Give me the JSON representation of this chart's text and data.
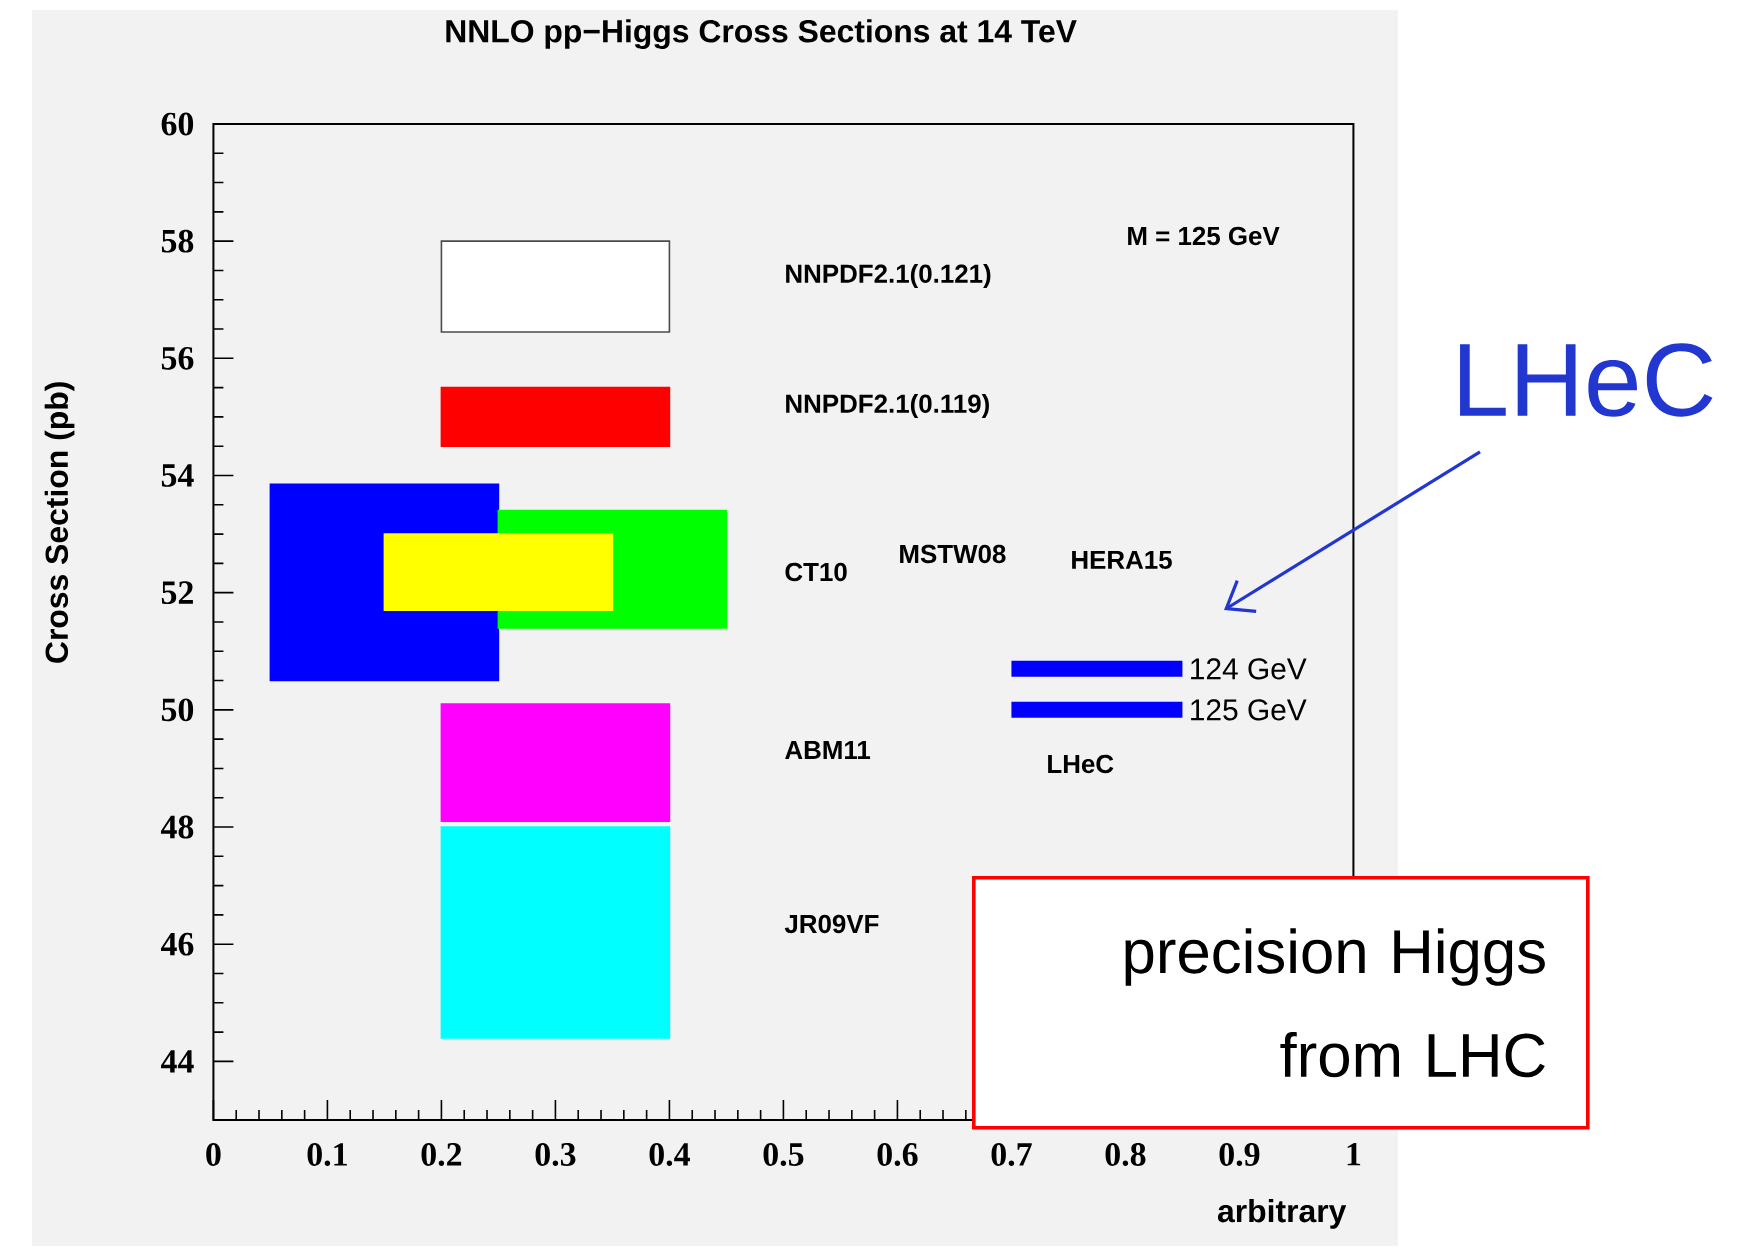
{
  "chart_data": {
    "type": "bar",
    "title": "NNLO pp−Higgs Cross Sections at 14 TeV",
    "xlabel": "arbitrary",
    "ylabel": "Cross Section (pb)",
    "xlim": [
      0,
      1
    ],
    "ylim": [
      43,
      60
    ],
    "xticks": [
      0,
      0.1,
      0.2,
      0.3,
      0.4,
      0.5,
      0.6,
      0.7,
      0.8,
      0.9,
      1
    ],
    "yticks": [
      44,
      46,
      48,
      50,
      52,
      54,
      56,
      58,
      60
    ],
    "legend": false,
    "series": [
      {
        "color": "#ffffff",
        "x": [
          0.3
        ],
        "base": [
          56.45
        ],
        "values": [
          1.55
        ]
      },
      {
        "color": "#ff0000",
        "x": [
          0.3
        ],
        "base": [
          54.5
        ],
        "values": [
          1.0
        ]
      },
      {
        "color": "#0000ff",
        "x": [
          0.15
        ],
        "base": [
          50.5
        ],
        "values": [
          3.35
        ]
      },
      {
        "color": "#00ff00",
        "x": [
          0.35
        ],
        "base": [
          51.4
        ],
        "values": [
          2.0
        ]
      },
      {
        "color": "#ffff00",
        "x": [
          0.25
        ],
        "base": [
          51.7
        ],
        "values": [
          1.3
        ]
      },
      {
        "color": "#ff00ff",
        "x": [
          0.3
        ],
        "base": [
          48.1
        ],
        "values": [
          2.0
        ]
      },
      {
        "color": "#00ffff",
        "x": [
          0.3
        ],
        "base": [
          44.4
        ],
        "values": [
          3.6
        ]
      },
      {
        "type": "line",
        "name": "124 GeV",
        "color": "#0000ff",
        "x": [
          0.7,
          0.85
        ],
        "values": [
          50.7,
          50.7
        ]
      },
      {
        "type": "line",
        "name": "125 GeV",
        "color": "#0000ff",
        "x": [
          0.7,
          0.85
        ],
        "values": [
          50.0,
          50.0
        ]
      }
    ],
    "annotations": [
      "NNPDF2.1(0.121)",
      "NNPDF2.1(0.119)",
      "CT10",
      "MSTW08",
      "HERA15",
      "ABM11",
      "LHeC",
      "JR09VF",
      "M = 125 GeV",
      "LHeC",
      "precision Higgs from LHC"
    ]
  }
}
